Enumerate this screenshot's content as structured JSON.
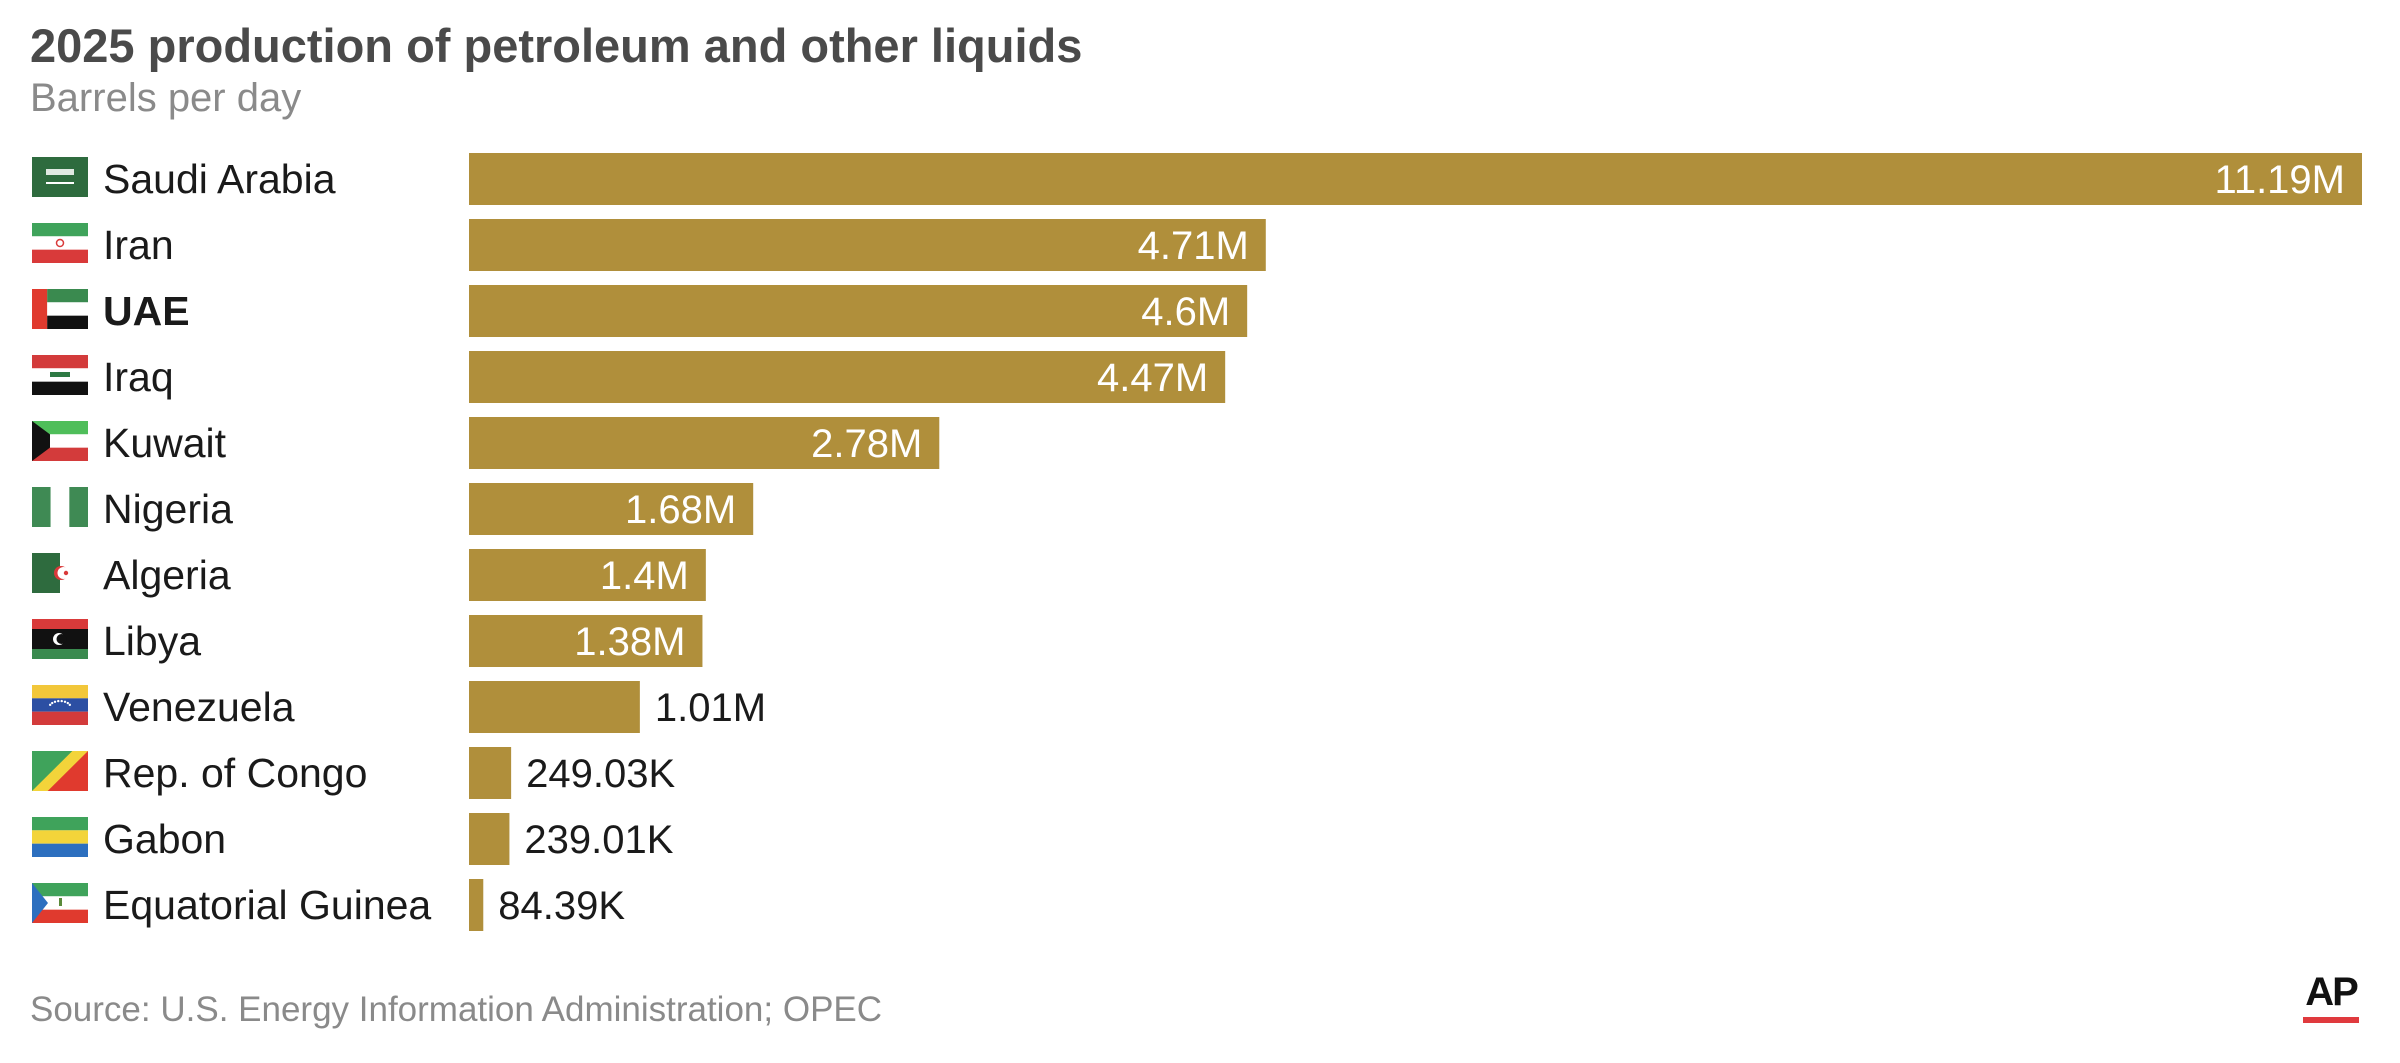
{
  "title": "2025 production of petroleum and other liquids",
  "subtitle": "Barrels per day",
  "source": "Source: U.S. Energy Information Administration; OPEC",
  "logo_text": "AP",
  "colors": {
    "bar": "#b08f3b",
    "label_inside": "#ffffff",
    "label_outside": "#1a1a1a",
    "logo_underline": "#e03a3e"
  },
  "chart_data": {
    "type": "bar",
    "orientation": "horizontal",
    "title": "2025 production of petroleum and other liquids",
    "subtitle": "Barrels per day",
    "categories": [
      "Saudi Arabia",
      "Iran",
      "UAE",
      "Iraq",
      "Kuwait",
      "Nigeria",
      "Algeria",
      "Libya",
      "Venezuela",
      "Rep. of Congo",
      "Gabon",
      "Equatorial Guinea"
    ],
    "values": [
      11190000,
      4710000,
      4600000,
      4470000,
      2780000,
      1680000,
      1400000,
      1380000,
      1010000,
      249030,
      239010,
      84390
    ],
    "value_labels": [
      "11.19M",
      "4.71M",
      "4.6M",
      "4.47M",
      "2.78M",
      "1.68M",
      "1.4M",
      "1.38M",
      "1.01M",
      "249.03K",
      "239.01K",
      "84.39K"
    ],
    "highlighted": [
      "UAE"
    ],
    "flags": [
      "saudi-arabia-flag-icon",
      "iran-flag-icon",
      "uae-flag-icon",
      "iraq-flag-icon",
      "kuwait-flag-icon",
      "nigeria-flag-icon",
      "algeria-flag-icon",
      "libya-flag-icon",
      "venezuela-flag-icon",
      "congo-flag-icon",
      "gabon-flag-icon",
      "equatorial-guinea-flag-icon"
    ],
    "xlim": [
      0,
      11190000
    ],
    "grid": false,
    "legend": "none"
  }
}
